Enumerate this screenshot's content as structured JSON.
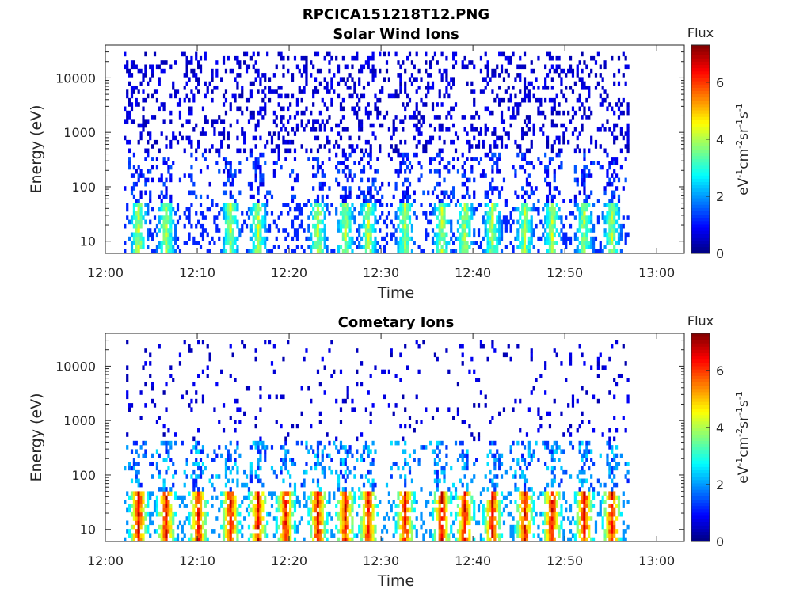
{
  "figure_title": "RPCICA151218T12.PNG",
  "colors": {
    "colormap": [
      "#00007f",
      "#0000ff",
      "#007fff",
      "#00ffff",
      "#7fff7f",
      "#ffff00",
      "#ff7f00",
      "#ff0000",
      "#7f0000"
    ]
  },
  "chart_data": [
    {
      "type": "heatmap",
      "title": "Solar Wind Ions",
      "xlabel": "Time",
      "ylabel": "Energy (eV)",
      "x_ticks": [
        "12:00",
        "12:10",
        "12:20",
        "12:30",
        "12:40",
        "12:50",
        "13:00"
      ],
      "x_range": [
        "12:00",
        "13:03"
      ],
      "data_extent": [
        "12:02",
        "12:57"
      ],
      "y_scale": "log",
      "y_ticks": [
        "10",
        "100",
        "1000",
        "10000"
      ],
      "y_range": [
        6,
        40000
      ],
      "colorbar": {
        "title": "Flux",
        "label_base": "eV",
        "label_parts": [
          "-1",
          "cm",
          "-2",
          "sr",
          "-1",
          "s",
          "-1"
        ],
        "ticks": [
          "0",
          "2",
          "4",
          "6"
        ],
        "range": [
          0,
          7.3
        ]
      },
      "pattern": {
        "high_energy_level": 0.6,
        "mid_energy_level": 1.6,
        "low_energy_level": 3.3,
        "peak_level": 4.6,
        "burst_times_min": [
          3.5,
          6.5,
          13.5,
          16.5,
          23,
          26,
          28.5,
          32.5,
          36.5,
          39,
          42,
          45.5,
          48.5,
          52,
          55
        ]
      }
    },
    {
      "type": "heatmap",
      "title": "Cometary Ions",
      "xlabel": "Time",
      "ylabel": "Energy (eV)",
      "x_ticks": [
        "12:00",
        "12:10",
        "12:20",
        "12:30",
        "12:40",
        "12:50",
        "13:00"
      ],
      "x_range": [
        "12:00",
        "13:03"
      ],
      "data_extent": [
        "12:02",
        "12:57"
      ],
      "y_scale": "log",
      "y_ticks": [
        "10",
        "100",
        "1000",
        "10000"
      ],
      "y_range": [
        6,
        40000
      ],
      "colorbar": {
        "title": "Flux",
        "label_base": "eV",
        "label_parts": [
          "-1",
          "cm",
          "-2",
          "sr",
          "-1",
          "s",
          "-1"
        ],
        "ticks": [
          "0",
          "2",
          "4",
          "6"
        ],
        "range": [
          0,
          7.3
        ]
      },
      "pattern": {
        "high_energy_level": 0.6,
        "mid_energy_level": 2.6,
        "low_energy_level": 5.6,
        "peak_level": 7.0,
        "burst_times_min": [
          3.5,
          6.5,
          10,
          13.5,
          16.5,
          19.5,
          23,
          26,
          28.5,
          32.5,
          36.5,
          39,
          42,
          45.5,
          48.5,
          52,
          55
        ]
      }
    }
  ]
}
